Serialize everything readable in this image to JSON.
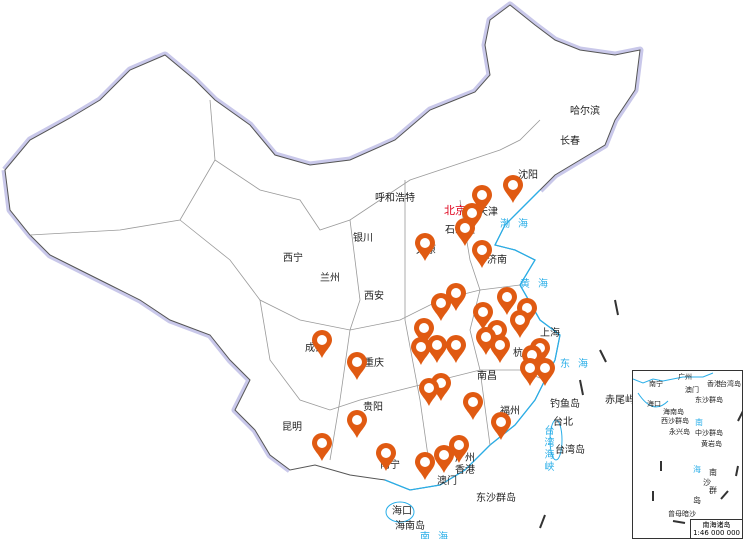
{
  "map": {
    "colors": {
      "pin": "#e05a12",
      "capital": "#e0001b",
      "sea": "#29aee8",
      "border_halo": "#c9c8ea",
      "land": "#ffffff"
    },
    "cities": [
      {
        "name": "哈尔滨"
      },
      {
        "name": "长春"
      },
      {
        "name": "沈阳"
      },
      {
        "name": "呼和浩特"
      },
      {
        "name": "北京",
        "capital": true
      },
      {
        "name": "天津"
      },
      {
        "name": "石家庄"
      },
      {
        "name": "太原"
      },
      {
        "name": "济南"
      },
      {
        "name": "银川"
      },
      {
        "name": "西宁"
      },
      {
        "name": "兰州"
      },
      {
        "name": "西安"
      },
      {
        "name": "上海"
      },
      {
        "name": "成都"
      },
      {
        "name": "重庆"
      },
      {
        "name": "杭州"
      },
      {
        "name": "南昌"
      },
      {
        "name": "福州"
      },
      {
        "name": "台北"
      },
      {
        "name": "钓鱼岛"
      },
      {
        "name": "赤尾屿"
      },
      {
        "name": "台湾岛"
      },
      {
        "name": "贵阳"
      },
      {
        "name": "昆明"
      },
      {
        "name": "南宁"
      },
      {
        "name": "广州"
      },
      {
        "name": "香港"
      },
      {
        "name": "澳门"
      },
      {
        "name": "海口"
      },
      {
        "name": "海南岛"
      },
      {
        "name": "东沙群岛"
      }
    ],
    "seas": [
      "渤海",
      "黄海",
      "东海",
      "台湾海峡",
      "南海"
    ],
    "marker_icon": "map-pin-icon",
    "marker_count": 35
  },
  "inset": {
    "title": "南海诸岛",
    "scale": "1:46 000 000",
    "labels": [
      "广州",
      "南宁",
      "香港",
      "澳门",
      "台湾岛",
      "海口",
      "东沙群岛",
      "海南岛",
      "西沙群岛",
      "永兴岛",
      "中沙群岛",
      "黄岩岛",
      "曾母暗沙"
    ],
    "seas": [
      "南",
      "海",
      "南",
      "沙",
      "群",
      "岛"
    ]
  }
}
